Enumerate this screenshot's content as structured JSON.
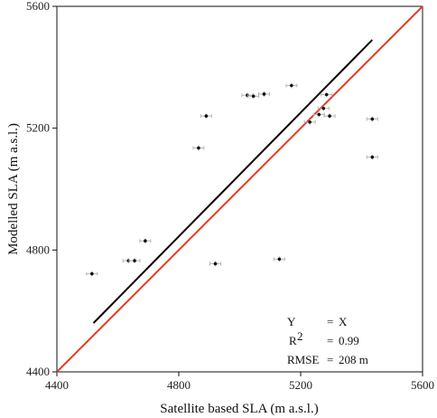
{
  "chart_data": {
    "type": "scatter",
    "xlabel": "Satellite based SLA (m a.s.l.)",
    "ylabel": "Modelled SLA (m a.s.l.)",
    "xlim": [
      4400,
      5600
    ],
    "ylim": [
      4400,
      5600
    ],
    "xticks": [
      4400,
      4800,
      5200,
      5600
    ],
    "yticks": [
      4400,
      4800,
      5200,
      5600
    ],
    "tick_labels": [
      "4400",
      "4800",
      "5200",
      "5600"
    ],
    "grid": false,
    "points": [
      {
        "x": 4515,
        "y": 4722
      },
      {
        "x": 4635,
        "y": 4765
      },
      {
        "x": 4655,
        "y": 4765
      },
      {
        "x": 4690,
        "y": 4830
      },
      {
        "x": 4865,
        "y": 5135
      },
      {
        "x": 4890,
        "y": 5240
      },
      {
        "x": 4920,
        "y": 4755
      },
      {
        "x": 5025,
        "y": 5308
      },
      {
        "x": 5045,
        "y": 5305
      },
      {
        "x": 5080,
        "y": 5312
      },
      {
        "x": 5130,
        "y": 4770
      },
      {
        "x": 5170,
        "y": 5340
      },
      {
        "x": 5230,
        "y": 5220
      },
      {
        "x": 5260,
        "y": 5245
      },
      {
        "x": 5275,
        "y": 5265
      },
      {
        "x": 5285,
        "y": 5310
      },
      {
        "x": 5295,
        "y": 5240
      },
      {
        "x": 5435,
        "y": 5230
      },
      {
        "x": 5435,
        "y": 5105
      }
    ],
    "lines": [
      {
        "name": "1:1",
        "color": "#e53b2c",
        "from": [
          4400,
          4400
        ],
        "to": [
          5600,
          5600
        ]
      },
      {
        "name": "regression",
        "color": "#000000",
        "from": [
          4520,
          4560
        ],
        "to": [
          5435,
          5490
        ]
      }
    ],
    "annotations": {
      "eq_lhs": "Y",
      "eq_sign": "=",
      "eq_rhs": "X",
      "r2_lhs": "R",
      "r2_sup": "2",
      "r2_sign": "=",
      "r2_value": "0.99",
      "rmse_lhs": "RMSE",
      "rmse_sign": "=",
      "rmse_value": "208 m"
    }
  }
}
